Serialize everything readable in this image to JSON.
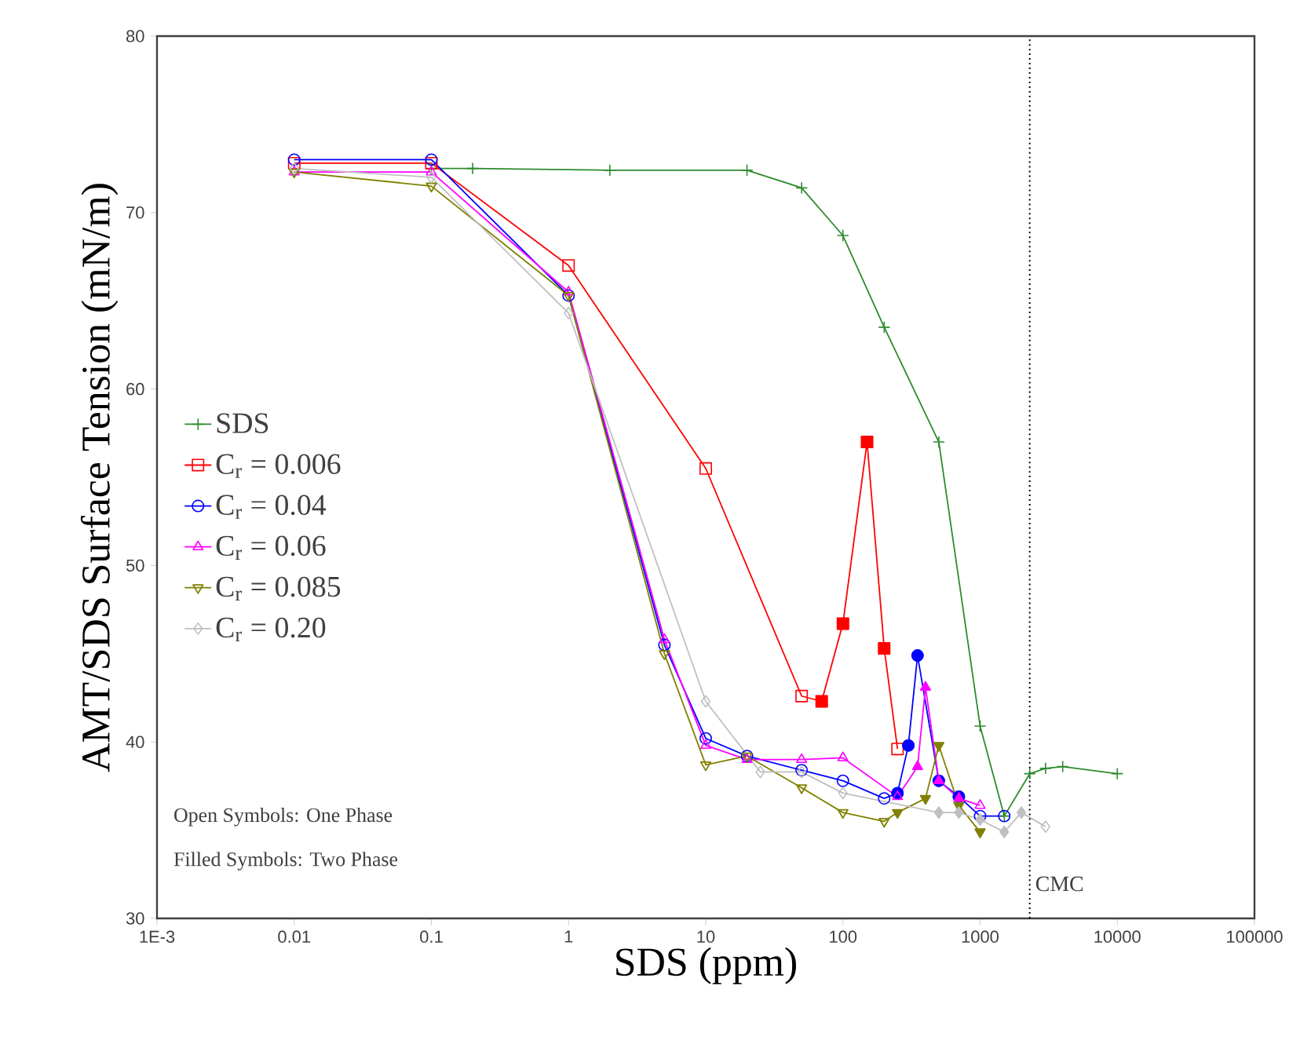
{
  "chart_data": {
    "type": "line",
    "xlabel": "SDS (ppm)",
    "ylabel": "AMT/SDS Surface Tension (mN/m)",
    "log": "x",
    "xlim": [
      0.001,
      100000
    ],
    "ylim": [
      30,
      80
    ],
    "xticks": [
      {
        "value": 0.001,
        "label": "1E-3"
      },
      0.01,
      0.1,
      1,
      10,
      100,
      1000,
      10000,
      100000
    ],
    "yticks": [
      30,
      40,
      50,
      60,
      70,
      80
    ],
    "grid": false,
    "legend": "left",
    "annotations": [
      "Open Symbols: One Phase",
      "Filled Symbols: Two Phase"
    ],
    "ref_lines": [
      {
        "axis": "x",
        "value": 2300,
        "label": "CMC",
        "line_style": "dotted",
        "color": "#000000"
      }
    ],
    "series": [
      {
        "name": "SDS",
        "marker": "cross",
        "color": "#2e8b2e",
        "x": [
          0.1,
          0.2,
          2,
          20,
          50,
          100,
          200,
          500,
          1000,
          1500,
          2300,
          3000,
          4000,
          10000
        ],
        "values": [
          72.5,
          72.5,
          72.4,
          72.4,
          71.4,
          68.7,
          63.5,
          57.0,
          40.9,
          35.8,
          38.2,
          38.5,
          38.6,
          38.2
        ]
      },
      {
        "name": "C$_{r}$ = 0.006",
        "marker": "square",
        "color": "#ff0000",
        "x": [
          0.01,
          0.1,
          1,
          10,
          50,
          70,
          100,
          150,
          200,
          250
        ],
        "values": [
          72.8,
          72.8,
          67.0,
          55.5,
          42.6,
          42.3,
          46.7,
          57.0,
          45.3,
          39.6
        ]
      },
      {
        "type": "scatter",
        "marker": "square",
        "color": "#ff0000",
        "x": [
          70,
          100,
          150,
          200
        ],
        "values": [
          42.3,
          46.7,
          57.0,
          45.3
        ]
      },
      {
        "name": "C$_{r}$ = 0.04",
        "marker": "circle",
        "color": "#0000ff",
        "x": [
          0.01,
          0.1,
          1,
          5,
          10,
          20,
          50,
          100,
          200,
          250,
          300,
          350,
          500,
          700,
          1000,
          1500
        ],
        "values": [
          73.0,
          73.0,
          65.3,
          45.5,
          40.2,
          39.2,
          38.4,
          37.8,
          36.8,
          37.1,
          39.8,
          44.9,
          37.8,
          36.9,
          35.8,
          35.8
        ]
      },
      {
        "type": "scatter",
        "marker": "circle",
        "color": "#0000ff",
        "x": [
          250,
          300,
          350,
          500,
          700
        ],
        "values": [
          37.1,
          39.8,
          44.9,
          37.8,
          36.9
        ]
      },
      {
        "name": "C$_{r}$ = 0.06",
        "marker": "triangle",
        "color": "#ff00ff",
        "x": [
          0.01,
          0.1,
          1,
          5,
          10,
          20,
          50,
          100,
          250,
          350,
          400,
          500,
          700,
          1000
        ],
        "values": [
          72.3,
          72.3,
          65.5,
          45.8,
          39.8,
          39.0,
          39.0,
          39.1,
          36.9,
          38.6,
          43.1,
          37.8,
          36.8,
          36.4
        ]
      },
      {
        "type": "scatter",
        "marker": "triangle",
        "color": "#ff00ff",
        "x": [
          350,
          400,
          500,
          700
        ],
        "values": [
          38.6,
          43.1,
          37.8,
          36.8
        ]
      },
      {
        "name": "C$_{r}$ = 0.085",
        "marker": "triangle down",
        "color": "#808000",
        "x": [
          0.01,
          0.1,
          1,
          5,
          10,
          20,
          50,
          100,
          200,
          250,
          400,
          500,
          700,
          1000
        ],
        "values": [
          72.3,
          71.5,
          65.3,
          45.0,
          38.7,
          39.2,
          37.4,
          36.0,
          35.5,
          36.0,
          36.8,
          39.8,
          36.4,
          34.9
        ]
      },
      {
        "type": "scatter",
        "marker": "triangle down",
        "color": "#808000",
        "x": [
          250,
          400,
          500,
          700,
          1000
        ],
        "values": [
          36.0,
          36.8,
          39.8,
          36.4,
          34.9
        ]
      },
      {
        "name": "C$_{r}$ = 0.20",
        "marker": "diamond",
        "color": "#c0c0c0",
        "x": [
          0.01,
          0.1,
          1,
          10,
          25,
          50,
          100,
          500,
          700,
          1000,
          1500,
          2000,
          3000
        ],
        "values": [
          72.5,
          72.0,
          64.3,
          42.3,
          38.3,
          38.3,
          37.1,
          36.0,
          36.0,
          35.6,
          34.9,
          36.0,
          35.2
        ]
      },
      {
        "type": "scatter",
        "marker": "diamond",
        "color": "#c0c0c0",
        "x": [
          500,
          700,
          1000,
          1500,
          2000
        ],
        "values": [
          36.0,
          36.0,
          35.6,
          34.9,
          36.0
        ]
      }
    ]
  }
}
